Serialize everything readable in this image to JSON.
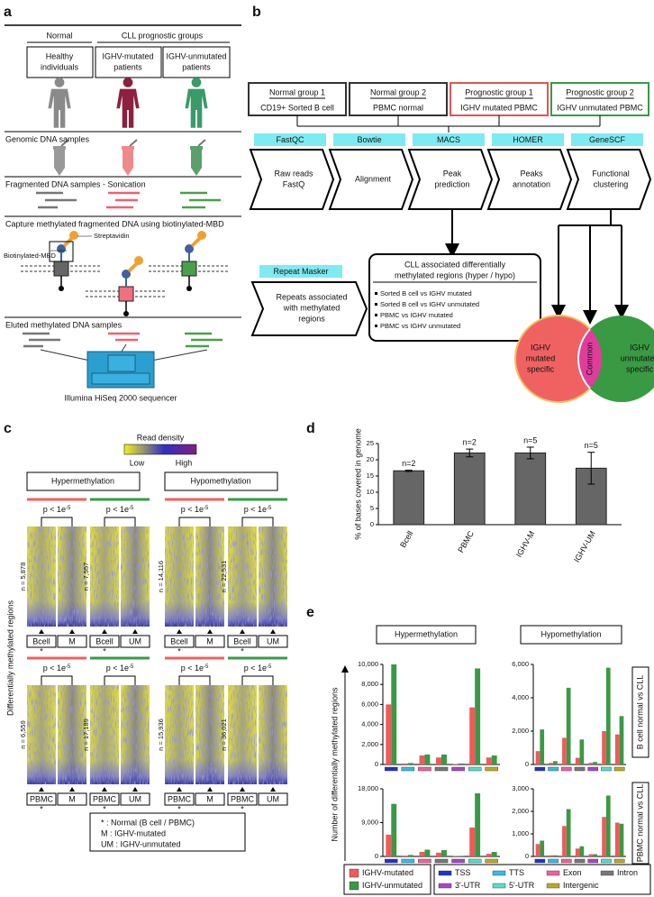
{
  "panel_a": {
    "label": "a",
    "normal": "Normal",
    "cll": "CLL prognostic groups",
    "groups": [
      [
        "Healthy",
        "individuals"
      ],
      [
        "IGHV-mutated",
        "patients"
      ],
      [
        "IGHV-unmutated",
        "patients"
      ]
    ],
    "steps": [
      "Genomic DNA samples",
      "Fragmented DNA samples - Sonication",
      "Capture methylated fragmented DNA using biotinylated-MBD",
      "Eluted methylated DNA samples"
    ],
    "streptavidin": "Streptavidin",
    "mbd": "Biotinylated-MBD",
    "sequencer": "Illumina HiSeq 2000 sequencer"
  },
  "panel_b": {
    "label": "b",
    "groups": [
      {
        "title": "Normal group 1",
        "text": "CD19+ Sorted B cell"
      },
      {
        "title": "Normal group 2",
        "text": "PBMC normal"
      },
      {
        "title": "Prognostic group 1",
        "text": "IGHV mutated PBMC"
      },
      {
        "title": "Prognostic group 2",
        "text": "IGHV unmutated PBMC"
      }
    ],
    "steps": [
      {
        "tool": "FastQC",
        "lines": [
          "Raw reads",
          "FastQ"
        ]
      },
      {
        "tool": "Bowtie",
        "lines": [
          "Alignment"
        ]
      },
      {
        "tool": "MACS",
        "lines": [
          "Peak",
          "prediction"
        ]
      },
      {
        "tool": "HOMER",
        "lines": [
          "Peaks",
          "annotation"
        ]
      },
      {
        "tool": "GeneSCF",
        "lines": [
          "Functional",
          "clustering"
        ]
      }
    ],
    "repeat": {
      "tool": "Repeat Masker",
      "lines": [
        "Repeats associated",
        "with methylated",
        "regions"
      ]
    },
    "cll_box": {
      "title": [
        "CLL associated differentially",
        "methylated regions (hyper / hypo)"
      ],
      "items": [
        "Sorted B cell vs IGHV mutated",
        "Sorted B cell vs IGHV unmutated",
        "PBMC vs IGHV mutated",
        "PBMC vs IGHV unmutated"
      ]
    },
    "venn": {
      "left": [
        "IGHV",
        "mutated",
        "specific"
      ],
      "common": "Common",
      "right": [
        "IGHV",
        "unmutated",
        "specific"
      ]
    }
  },
  "panel_c": {
    "label": "c",
    "legend_title": "Read density",
    "low": "Low",
    "high": "High",
    "headers": [
      "Hypermethylation",
      "Hypomethylation"
    ],
    "p_text": "p < 1e",
    "p_exp": "-5",
    "ylabel": "Differentially methylated regions",
    "star": "*",
    "rows": [
      [
        {
          "n": "n = 5,878",
          "columns": [
            "Bcell",
            "M"
          ]
        },
        {
          "n": "n = 7,557",
          "columns": [
            "Bcell",
            "UM"
          ]
        },
        {
          "n": "n = 14,116",
          "columns": [
            "Bcell",
            "M"
          ]
        },
        {
          "n": "n = 22,531",
          "columns": [
            "Bcell",
            "UM"
          ]
        }
      ],
      [
        {
          "n": "n = 6,559",
          "columns": [
            "PBMC",
            "M"
          ]
        },
        {
          "n": "n = 17,189",
          "columns": [
            "PBMC",
            "UM"
          ]
        },
        {
          "n": "n = 15,936",
          "columns": [
            "PBMC",
            "M"
          ]
        },
        {
          "n": "n = 36,021",
          "columns": [
            "PBMC",
            "UM"
          ]
        }
      ]
    ],
    "legend": [
      "* : Normal (B cell / PBMC)",
      "M : IGHV-mutated",
      "UM : IGHV-unmutated"
    ]
  },
  "panel_d": {
    "label": "d"
  },
  "panel_e": {
    "label": "e",
    "headers": [
      "Hypermethylation",
      "Hypomethylation"
    ],
    "rows": [
      "B cell normal vs CLL",
      "PBMC normal vs CLL"
    ],
    "ylabel": "Number of differentially methylated regions"
  },
  "chart_data": [
    {
      "type": "bar",
      "ylabel": "% of bases covered in genome",
      "categories": [
        "Bcell",
        "PBMC",
        "IGHV-M",
        "IGHV-UM"
      ],
      "values": [
        16.6,
        22.1,
        22.1,
        17.4
      ],
      "errors": [
        0.2,
        1.2,
        1.8,
        4.9
      ],
      "annotations": [
        "n=2",
        "n=2",
        "n=5",
        "n=5"
      ],
      "color": "#666666",
      "ylim": [
        0,
        25
      ],
      "yticks": [
        0,
        5,
        10,
        15,
        20,
        25
      ]
    },
    {
      "type": "grouped_bar",
      "categories": [
        "TSS",
        "TTS",
        "Exon",
        "Intron",
        "3'-UTR",
        "5'-UTR",
        "Intergenic"
      ],
      "category_colors": [
        "#2233cc",
        "#33bbee",
        "#f060a0",
        "#777777",
        "#aa44cc",
        "#55ddcc",
        "#bbaa22"
      ],
      "series": [
        {
          "name": "IGHV-mutated",
          "color": "#f05a5a",
          "values": [
            6000,
            100,
            900,
            700,
            50,
            5700,
            700
          ]
        },
        {
          "name": "IGHV-unmutated",
          "color": "#3a9a44",
          "values": [
            10000,
            150,
            1000,
            1000,
            100,
            9600,
            900
          ]
        }
      ],
      "ylim": [
        0,
        10000
      ],
      "yticks": [
        0,
        {
          "value": 2000,
          "label": "2,000"
        },
        {
          "value": 4000,
          "label": "4,000"
        },
        {
          "value": 6000,
          "label": "6,000"
        },
        {
          "value": 8000,
          "label": "8,000"
        },
        {
          "value": 10000,
          "label": "10,000"
        }
      ]
    },
    {
      "type": "grouped_bar",
      "categories": [
        "TSS",
        "TTS",
        "Exon",
        "Intron",
        "3'-UTR",
        "5'-UTR",
        "Intergenic"
      ],
      "category_colors": [
        "#2233cc",
        "#33bbee",
        "#f060a0",
        "#777777",
        "#aa44cc",
        "#55ddcc",
        "#bbaa22"
      ],
      "series": [
        {
          "name": "IGHV-mutated",
          "color": "#f05a5a",
          "values": [
            800,
            100,
            1600,
            400,
            100,
            2000,
            1800
          ]
        },
        {
          "name": "IGHV-unmutated",
          "color": "#3a9a44",
          "values": [
            2100,
            200,
            4600,
            1500,
            150,
            5800,
            2900
          ]
        }
      ],
      "ylim": [
        0,
        6000
      ],
      "yticks": [
        0,
        {
          "value": 2000,
          "label": "2,000"
        },
        {
          "value": 4000,
          "label": "4,000"
        },
        {
          "value": 6000,
          "label": "6,000"
        }
      ]
    },
    {
      "type": "grouped_bar",
      "categories": [
        "TSS",
        "TTS",
        "Exon",
        "Intron",
        "3'-UTR",
        "5'-UTR",
        "Intergenic"
      ],
      "category_colors": [
        "#2233cc",
        "#33bbee",
        "#f060a0",
        "#777777",
        "#aa44cc",
        "#55ddcc",
        "#bbaa22"
      ],
      "series": [
        {
          "name": "IGHV-mutated",
          "color": "#f05a5a",
          "values": [
            5800,
            200,
            1200,
            1000,
            100,
            7700,
            700
          ]
        },
        {
          "name": "IGHV-unmutated",
          "color": "#3a9a44",
          "values": [
            14000,
            400,
            1800,
            1700,
            150,
            16800,
            1200
          ]
        }
      ],
      "ylim": [
        0,
        18000
      ],
      "yticks": [
        0,
        {
          "value": 9000,
          "label": "9,000"
        },
        {
          "value": 18000,
          "label": "18,000"
        }
      ]
    },
    {
      "type": "grouped_bar",
      "categories": [
        "TSS",
        "TTS",
        "Exon",
        "Intron",
        "3'-UTR",
        "5'-UTR",
        "Intergenic"
      ],
      "category_colors": [
        "#2233cc",
        "#33bbee",
        "#f060a0",
        "#777777",
        "#aa44cc",
        "#55ddcc",
        "#bbaa22"
      ],
      "series": [
        {
          "name": "IGHV-mutated",
          "color": "#f05a5a",
          "values": [
            550,
            50,
            1350,
            350,
            100,
            1750,
            1500
          ]
        },
        {
          "name": "IGHV-unmutated",
          "color": "#3a9a44",
          "values": [
            700,
            50,
            2100,
            450,
            100,
            2700,
            1450
          ]
        }
      ],
      "ylim": [
        0,
        3000
      ],
      "yticks": [
        0,
        {
          "value": 1000,
          "label": "1,000"
        },
        {
          "value": 2000,
          "label": "2,000"
        },
        {
          "value": 3000,
          "label": "3,000"
        }
      ]
    }
  ]
}
